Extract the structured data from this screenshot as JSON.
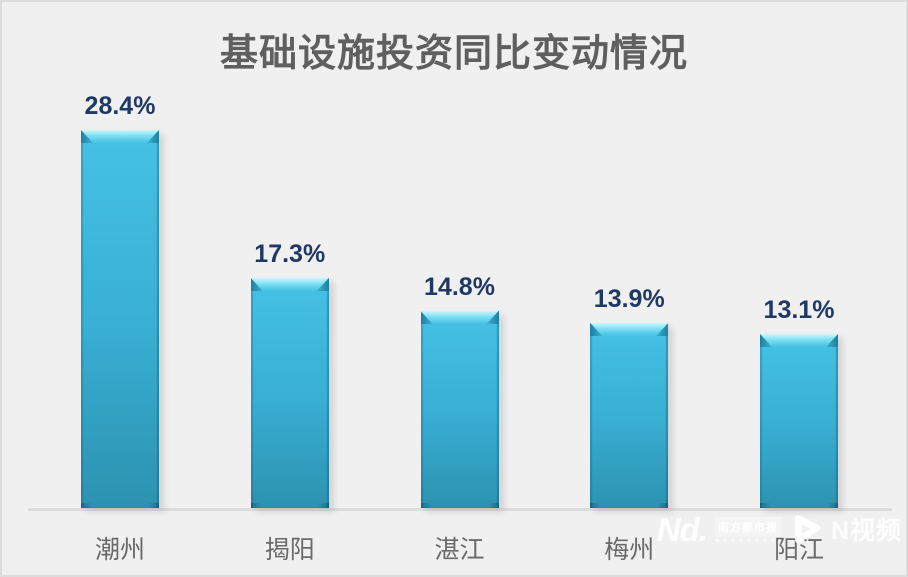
{
  "chart_data": {
    "type": "bar",
    "title": "基础设施投资同比变动情况",
    "categories": [
      "潮州",
      "揭阳",
      "湛江",
      "梅州",
      "阳江"
    ],
    "values": [
      28.4,
      17.3,
      14.8,
      13.9,
      13.1
    ],
    "value_labels": [
      "28.4%",
      "17.3%",
      "14.8%",
      "13.9%",
      "13.1%"
    ],
    "unit": "%",
    "xlabel": "",
    "ylabel": "",
    "ylim": [
      0,
      30
    ],
    "grid": false,
    "legend": false,
    "colors": {
      "background": "#f0f0f0",
      "title": "#5f5f5f",
      "bar_top": "#46c1e4",
      "bar_bottom": "#2d92b1",
      "cap_light": "#c9f9ff",
      "cap_mid": "#6fd9f1",
      "edge_dark": "#1e7f9e",
      "value_label": "#1f3864",
      "category_label": "#6a6a6a",
      "baseline": "#dcdcdc"
    }
  },
  "watermark": {
    "brand": "Nd.",
    "badge": "南方都市报",
    "video_label": "N视频"
  }
}
